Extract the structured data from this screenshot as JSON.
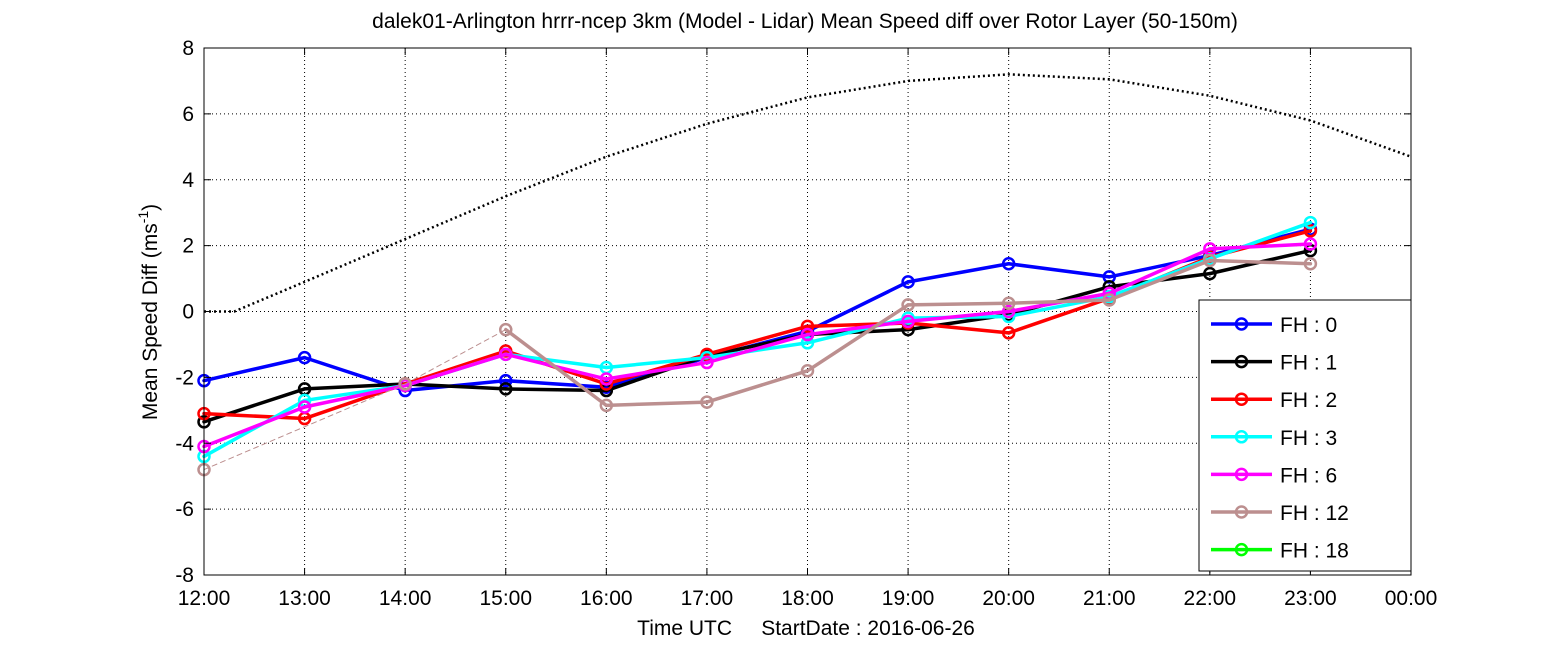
{
  "chart_data": {
    "type": "line",
    "title": "dalek01-Arlington hrrr-ncep 3km (Model - Lidar) Mean Speed diff over Rotor Layer (50-150m)",
    "xlabel": "Time UTC     StartDate : 2016-06-26",
    "ylabel_main": "Mean Speed Diff (ms",
    "ylabel_sup": "-1",
    "ylabel_close": ")",
    "categories": [
      "12:00",
      "13:00",
      "14:00",
      "15:00",
      "16:00",
      "17:00",
      "18:00",
      "19:00",
      "20:00",
      "21:00",
      "22:00",
      "23:00",
      "00:00"
    ],
    "x_range_hours": [
      12,
      24
    ],
    "y_ticks": [
      "-8",
      "-6",
      "-4",
      "-2",
      "0",
      "2",
      "4",
      "6",
      "8"
    ],
    "ylim": [
      -8,
      8
    ],
    "grid": true,
    "legend_position": "right-bottom",
    "reference_curve": {
      "style": "dotted",
      "color": "#000000",
      "x": [
        12,
        12.3,
        13,
        14,
        15,
        16,
        17,
        18,
        19,
        20,
        21,
        22,
        23,
        24
      ],
      "y": [
        0,
        0,
        0.9,
        2.2,
        3.5,
        4.7,
        5.7,
        6.5,
        7.0,
        7.2,
        7.05,
        6.55,
        5.8,
        4.7
      ]
    },
    "series": [
      {
        "name": "FH : 0",
        "color": "#0000ff",
        "x": [
          12,
          13,
          14,
          15,
          16,
          17,
          18,
          19,
          20,
          21,
          22,
          23
        ],
        "y": [
          -2.1,
          -1.4,
          -2.4,
          -2.1,
          -2.3,
          -1.4,
          -0.6,
          0.9,
          1.45,
          1.05,
          1.7,
          2.5
        ]
      },
      {
        "name": "FH : 1",
        "color": "#000000",
        "x": [
          12,
          13,
          14,
          15,
          16,
          17,
          18,
          19,
          20,
          21,
          22,
          23
        ],
        "y": [
          -3.35,
          -2.35,
          -2.2,
          -2.35,
          -2.4,
          -1.35,
          -0.7,
          -0.55,
          -0.1,
          0.75,
          1.15,
          1.85
        ]
      },
      {
        "name": "FH : 2",
        "color": "#ff0000",
        "x": [
          12,
          13,
          14,
          15,
          16,
          17,
          18,
          19,
          20,
          21,
          22,
          23
        ],
        "y": [
          -3.1,
          -3.25,
          -2.2,
          -1.2,
          -2.2,
          -1.3,
          -0.45,
          -0.35,
          -0.65,
          0.4,
          1.65,
          2.45
        ]
      },
      {
        "name": "FH : 3",
        "color": "#00ffff",
        "x": [
          12,
          13,
          14,
          15,
          16,
          17,
          18,
          19,
          20,
          21,
          22,
          23
        ],
        "y": [
          -4.4,
          -2.7,
          -2.25,
          -1.3,
          -1.7,
          -1.4,
          -0.95,
          -0.2,
          -0.15,
          0.45,
          1.6,
          2.7
        ]
      },
      {
        "name": "FH : 6",
        "color": "#ff00ff",
        "x": [
          12,
          13,
          14,
          15,
          16,
          17,
          18,
          19,
          20,
          21,
          22,
          23
        ],
        "y": [
          -4.1,
          -2.9,
          -2.25,
          -1.3,
          -2.05,
          -1.55,
          -0.7,
          -0.3,
          0.0,
          0.55,
          1.9,
          2.05
        ]
      },
      {
        "name": "FH : 12",
        "color": "#bc8f8f",
        "x": [
          12,
          14,
          15,
          16,
          17,
          18,
          19,
          20,
          21,
          22,
          23
        ],
        "y": [
          -4.8,
          -2.2,
          -0.55,
          -2.85,
          -2.75,
          -1.8,
          0.2,
          0.25,
          0.35,
          1.55,
          1.45
        ],
        "connect": [
          [
            0,
            1
          ],
          [
            1,
            2
          ],
          [
            2,
            3
          ],
          [
            3,
            4
          ],
          [
            4,
            5
          ],
          [
            5,
            6
          ],
          [
            6,
            7
          ],
          [
            7,
            8
          ],
          [
            8,
            9
          ],
          [
            9,
            10
          ]
        ],
        "dashed_segments": [
          [
            0,
            1
          ],
          [
            1,
            2
          ]
        ]
      },
      {
        "name": "FH : 18",
        "color": "#00ff00",
        "x": [],
        "y": []
      }
    ]
  }
}
